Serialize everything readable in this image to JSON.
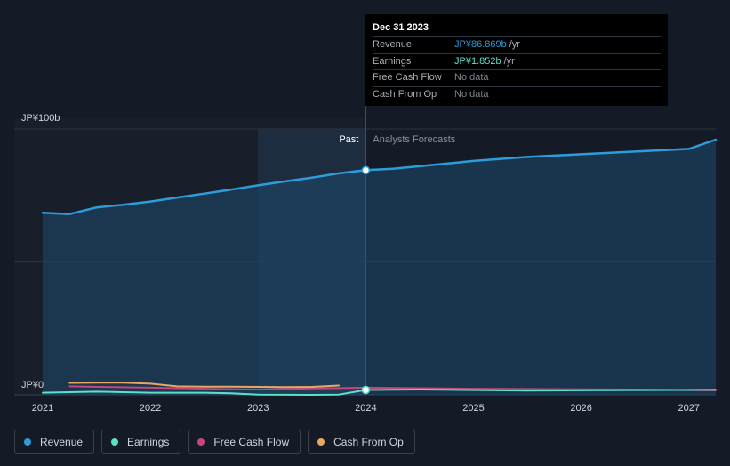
{
  "tooltip": {
    "date": "Dec 31 2023",
    "rows": [
      {
        "label": "Revenue",
        "value": "JP¥86.869b",
        "unit": "/yr",
        "color": "#2d9cdb"
      },
      {
        "label": "Earnings",
        "value": "JP¥1.852b",
        "unit": "/yr",
        "color": "#5de0c8"
      },
      {
        "label": "Free Cash Flow",
        "value": "No data",
        "unit": "",
        "color": ""
      },
      {
        "label": "Cash From Op",
        "value": "No data",
        "unit": "",
        "color": ""
      }
    ]
  },
  "legend": [
    {
      "label": "Revenue",
      "color": "#2d9cdb"
    },
    {
      "label": "Earnings",
      "color": "#5de0c8"
    },
    {
      "label": "Free Cash Flow",
      "color": "#c3477c"
    },
    {
      "label": "Cash From Op",
      "color": "#e9a85f"
    }
  ],
  "chart_data": {
    "type": "line",
    "y_top_label": "JP¥100b",
    "y_zero_label": "JP¥0",
    "past_label": "Past",
    "forecast_label": "Analysts Forecasts",
    "ylim": [
      0,
      100
    ],
    "xlim": [
      2021.0,
      2027.25
    ],
    "x_ticks": [
      {
        "value": 2021,
        "label": "2021"
      },
      {
        "value": 2022,
        "label": "2022"
      },
      {
        "value": 2023,
        "label": "2023"
      },
      {
        "value": 2024,
        "label": "2024"
      },
      {
        "value": 2025,
        "label": "2025"
      },
      {
        "value": 2026,
        "label": "2026"
      },
      {
        "value": 2027,
        "label": "2027"
      }
    ],
    "divider_x": 2024.0,
    "series": [
      {
        "name": "Revenue",
        "color": "#2d9cdb",
        "points": [
          [
            2021.0,
            68.5
          ],
          [
            2021.25,
            68.0
          ],
          [
            2021.5,
            70.5
          ],
          [
            2021.75,
            71.5
          ],
          [
            2022.0,
            72.7
          ],
          [
            2022.25,
            74.2
          ],
          [
            2022.5,
            75.7
          ],
          [
            2022.75,
            77.2
          ],
          [
            2023.0,
            78.8
          ],
          [
            2023.25,
            80.3
          ],
          [
            2023.5,
            81.7
          ],
          [
            2023.75,
            83.3
          ],
          [
            2024.0,
            84.5
          ],
          [
            2024.25,
            85.0
          ],
          [
            2024.5,
            86.0
          ],
          [
            2024.75,
            87.0
          ],
          [
            2025.0,
            88.0
          ],
          [
            2025.5,
            89.5
          ],
          [
            2026.0,
            90.5
          ],
          [
            2026.5,
            91.5
          ],
          [
            2027.0,
            92.5
          ],
          [
            2027.25,
            96.0
          ]
        ]
      },
      {
        "name": "Earnings",
        "color": "#5de0c8",
        "points": [
          [
            2021.0,
            0.8
          ],
          [
            2021.5,
            1.2
          ],
          [
            2022.0,
            0.8
          ],
          [
            2022.5,
            0.8
          ],
          [
            2022.75,
            0.6
          ],
          [
            2023.0,
            0.1
          ],
          [
            2023.5,
            0.0
          ],
          [
            2023.75,
            0.1
          ],
          [
            2024.0,
            1.85
          ],
          [
            2024.5,
            2.0
          ],
          [
            2025.0,
            1.8
          ],
          [
            2025.5,
            1.6
          ],
          [
            2026.0,
            1.7
          ],
          [
            2026.5,
            1.8
          ],
          [
            2027.25,
            1.9
          ]
        ]
      },
      {
        "name": "Free Cash Flow",
        "color": "#c3477c",
        "points": [
          [
            2021.25,
            3.2
          ],
          [
            2021.5,
            3.0
          ],
          [
            2022.0,
            2.7
          ],
          [
            2022.5,
            2.3
          ],
          [
            2023.0,
            2.0
          ],
          [
            2023.5,
            2.4
          ],
          [
            2024.0,
            2.7
          ],
          [
            2024.5,
            2.5
          ],
          [
            2025.0,
            2.3
          ],
          [
            2025.5,
            2.2
          ],
          [
            2026.0,
            2.1
          ],
          [
            2026.5,
            2.0
          ],
          [
            2027.25,
            1.7
          ]
        ]
      },
      {
        "name": "Cash From Op",
        "color": "#e9a85f",
        "points": [
          [
            2021.25,
            4.5
          ],
          [
            2021.5,
            4.6
          ],
          [
            2021.75,
            4.6
          ],
          [
            2022.0,
            4.2
          ],
          [
            2022.25,
            3.2
          ],
          [
            2022.5,
            3.1
          ],
          [
            2022.75,
            3.1
          ],
          [
            2023.0,
            3.0
          ],
          [
            2023.25,
            2.9
          ],
          [
            2023.5,
            3.0
          ],
          [
            2023.75,
            3.5
          ]
        ]
      }
    ]
  }
}
